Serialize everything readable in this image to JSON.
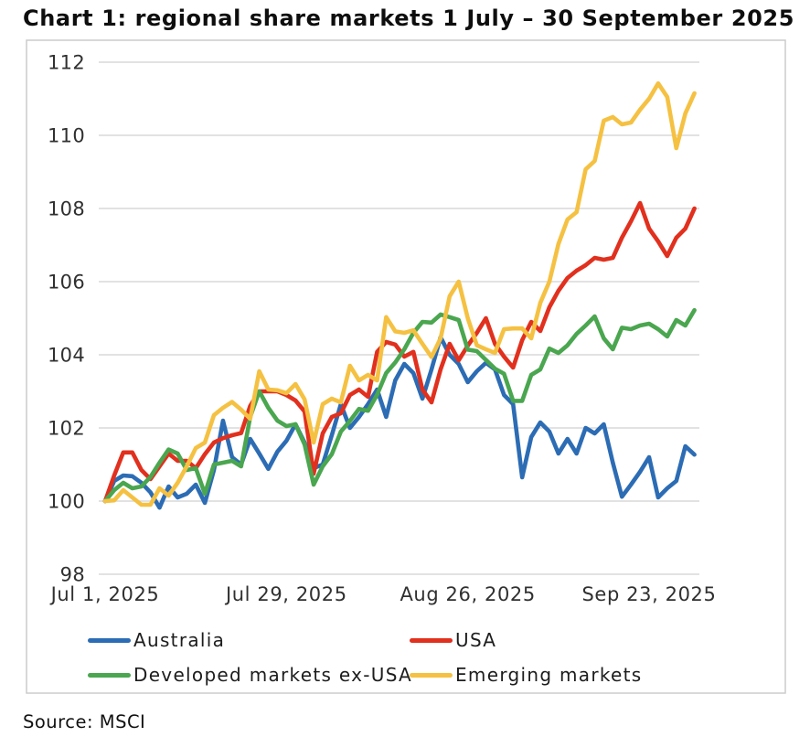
{
  "chart_data": {
    "type": "line",
    "title": "Chart 1: regional share markets 1 July – 30 September 2025",
    "source": "Source: MSCI",
    "x_start_label": "Jul 1, 2025",
    "x_end_day": 65,
    "x_ticks": [
      {
        "day": 0,
        "label": "Jul 1, 2025"
      },
      {
        "day": 20,
        "label": "Jul 29, 2025"
      },
      {
        "day": 40,
        "label": "Aug 26, 2025"
      },
      {
        "day": 60,
        "label": "Sep 23, 2025"
      }
    ],
    "y_ticks": [
      98,
      100,
      102,
      104,
      106,
      108,
      110,
      112
    ],
    "ylim": [
      98,
      112
    ],
    "grid": true,
    "legend_position": "bottom",
    "legend_columns": 2,
    "series": [
      {
        "id": "australia",
        "name": "Australia",
        "color": "#2C6CB4",
        "values": [
          100,
          100.55,
          100.7,
          100.68,
          100.5,
          100.24,
          99.82,
          100.4,
          100.1,
          100.2,
          100.45,
          99.95,
          100.85,
          102.2,
          101.2,
          101.0,
          101.7,
          101.3,
          100.88,
          101.35,
          101.65,
          102.1,
          101.6,
          100.9,
          101.0,
          101.8,
          102.65,
          102.0,
          102.3,
          102.65,
          103.05,
          102.3,
          103.3,
          103.75,
          103.5,
          102.8,
          103.6,
          104.48,
          104.0,
          103.75,
          103.25,
          103.55,
          103.78,
          103.6,
          102.9,
          102.65,
          100.65,
          101.75,
          102.15,
          101.9,
          101.3,
          101.7,
          101.3,
          102.0,
          101.85,
          102.1,
          101.05,
          100.12,
          100.45,
          100.8,
          101.2,
          100.1,
          100.35,
          100.55,
          101.5,
          101.27
        ]
      },
      {
        "id": "usa",
        "name": "USA",
        "color": "#E1301E",
        "values": [
          100,
          100.7,
          101.33,
          101.33,
          100.85,
          100.6,
          100.95,
          101.3,
          101.1,
          101.1,
          100.9,
          101.28,
          101.6,
          101.72,
          101.8,
          101.86,
          102.6,
          103.0,
          103.0,
          103.0,
          102.9,
          102.75,
          102.45,
          100.75,
          101.85,
          102.3,
          102.4,
          102.9,
          103.05,
          102.85,
          104.08,
          104.35,
          104.28,
          103.95,
          104.08,
          103.05,
          102.7,
          103.6,
          104.3,
          103.85,
          104.25,
          104.6,
          105.0,
          104.3,
          103.95,
          103.65,
          104.4,
          104.9,
          104.65,
          105.3,
          105.75,
          106.1,
          106.3,
          106.45,
          106.65,
          106.6,
          106.65,
          107.2,
          107.65,
          108.15,
          107.45,
          107.1,
          106.7,
          107.2,
          107.45,
          108.0
        ]
      },
      {
        "id": "developed-ex-usa",
        "name": "Developed markets ex-USA",
        "color": "#4AA64F",
        "values": [
          100,
          100.3,
          100.5,
          100.35,
          100.4,
          100.66,
          101.05,
          101.41,
          101.3,
          100.85,
          100.9,
          100.2,
          101.0,
          101.05,
          101.1,
          100.95,
          102.3,
          103.0,
          102.55,
          102.2,
          102.05,
          102.1,
          101.55,
          100.45,
          100.95,
          101.28,
          101.9,
          102.19,
          102.52,
          102.47,
          102.91,
          103.5,
          103.79,
          104.15,
          104.6,
          104.9,
          104.88,
          105.1,
          105.03,
          104.95,
          104.14,
          104.1,
          103.86,
          103.62,
          103.48,
          102.74,
          102.74,
          103.45,
          103.6,
          104.17,
          104.05,
          104.26,
          104.57,
          104.8,
          105.05,
          104.45,
          104.15,
          104.74,
          104.7,
          104.8,
          104.85,
          104.7,
          104.5,
          104.95,
          104.8,
          105.22
        ]
      },
      {
        "id": "emerging",
        "name": "Emerging markets",
        "color": "#F5C142",
        "values": [
          100,
          100.02,
          100.3,
          100.1,
          99.9,
          99.9,
          100.35,
          100.15,
          100.5,
          100.95,
          101.45,
          101.6,
          102.35,
          102.55,
          102.71,
          102.5,
          102.25,
          103.55,
          103.05,
          103.03,
          102.95,
          103.2,
          102.78,
          101.6,
          102.65,
          102.8,
          102.7,
          103.7,
          103.3,
          103.45,
          103.3,
          105.03,
          104.64,
          104.6,
          104.67,
          104.3,
          103.94,
          104.45,
          105.6,
          106.0,
          105.0,
          104.26,
          104.15,
          104.05,
          104.7,
          104.72,
          104.72,
          104.45,
          105.42,
          106.0,
          107.03,
          107.7,
          107.9,
          109.07,
          109.3,
          110.4,
          110.5,
          110.3,
          110.35,
          110.7,
          111.0,
          111.42,
          111.05,
          109.65,
          110.6,
          111.15
        ]
      }
    ]
  }
}
